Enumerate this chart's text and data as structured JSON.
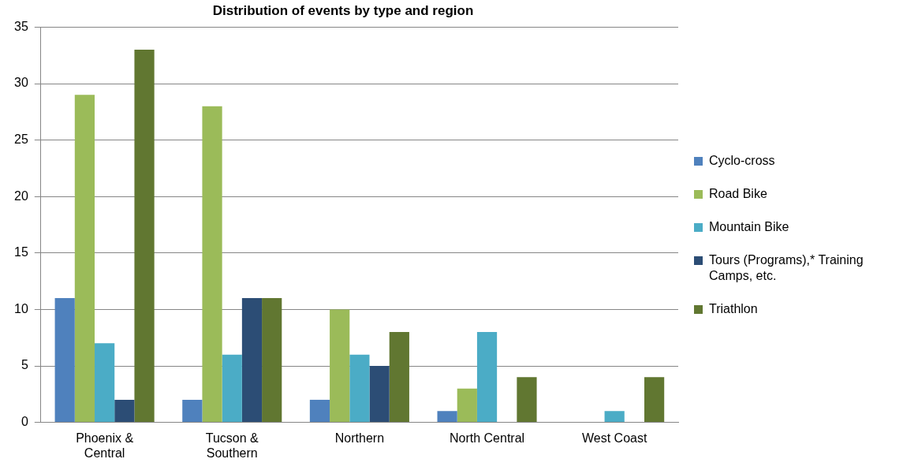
{
  "chart_data": {
    "type": "bar",
    "title": "Distribution of events by type and region",
    "categories": [
      "Phoenix & Central",
      "Tucson & Southern",
      "Northern",
      "North Central",
      "West Coast"
    ],
    "series": [
      {
        "name": "Cyclo-cross",
        "color": "#4f81bd",
        "values": [
          11,
          2,
          2,
          1,
          0
        ]
      },
      {
        "name": "Road Bike",
        "color": "#9bbb59",
        "values": [
          29,
          28,
          10,
          3,
          0
        ]
      },
      {
        "name": "Mountain Bike",
        "color": "#4bacc6",
        "values": [
          7,
          6,
          6,
          8,
          1
        ]
      },
      {
        "name": "Tours (Programs),* Training Camps, etc.",
        "color": "#2c4d75",
        "values": [
          2,
          11,
          5,
          0,
          0
        ]
      },
      {
        "name": "Triathlon",
        "color": "#617731",
        "values": [
          33,
          11,
          8,
          4,
          4
        ]
      }
    ],
    "ylim": [
      0,
      35
    ],
    "yticks": [
      0,
      5,
      10,
      15,
      20,
      25,
      30,
      35
    ],
    "grid": "y",
    "legend": "right"
  }
}
